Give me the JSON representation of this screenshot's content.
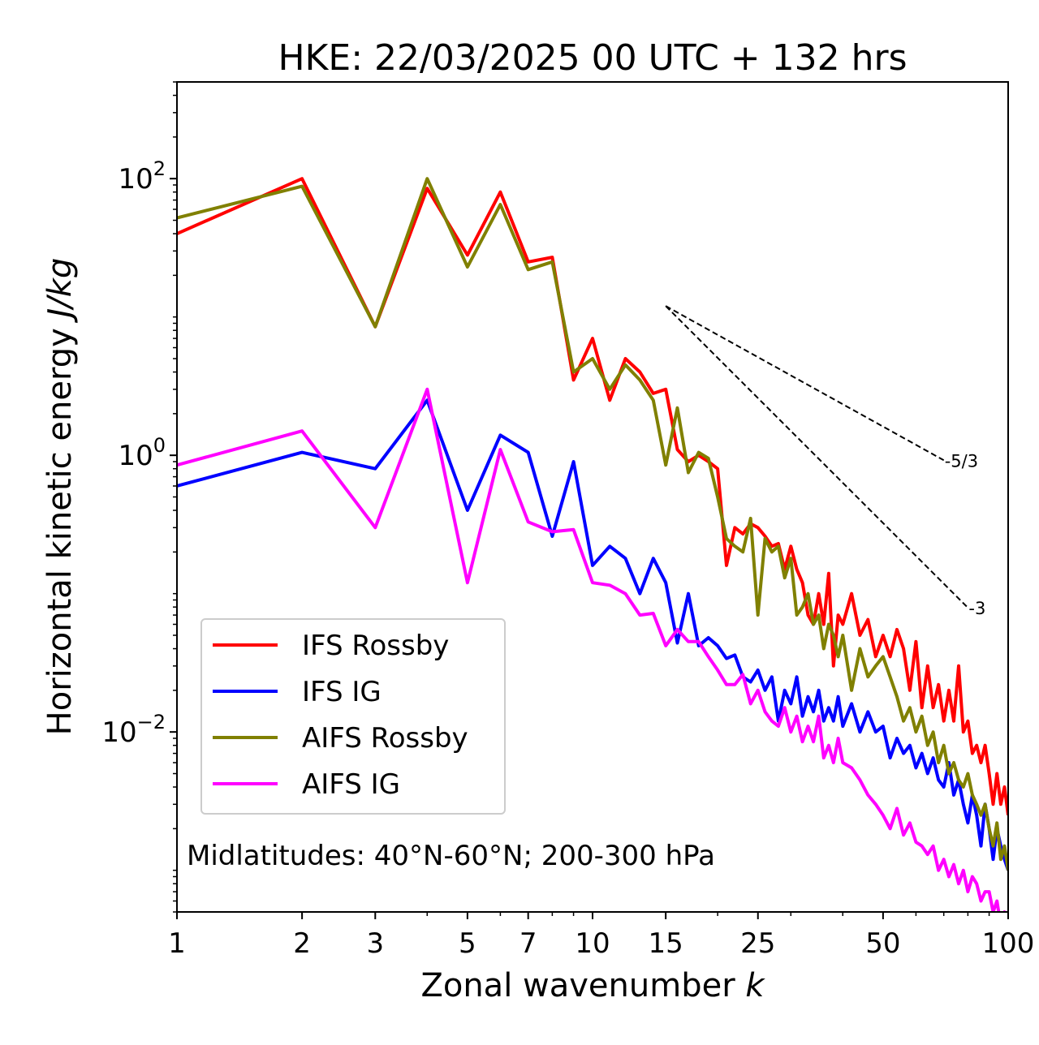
{
  "chart_data": {
    "type": "line",
    "title": "HKE: 22/03/2025 00 UTC + 132 hrs",
    "xlabel": "Zonal wavenumber k",
    "ylabel": "Horizontal kinetic energy J/kg",
    "xscale": "log",
    "yscale": "log",
    "xlim": [
      1,
      100
    ],
    "ylim": [
      0.0005,
      500
    ],
    "x_ticks": [
      1,
      2,
      3,
      5,
      7,
      10,
      15,
      25,
      50,
      100
    ],
    "x_tick_labels": [
      "1",
      "2",
      "3",
      "5",
      "7",
      "10",
      "15",
      "25",
      "50",
      "100"
    ],
    "y_ticks": [
      0.01,
      1,
      100
    ],
    "y_tick_labels": [
      {
        "base": "10",
        "exp": "−2"
      },
      {
        "base": "10",
        "exp": "0"
      },
      {
        "base": "10",
        "exp": "2"
      }
    ],
    "grid": false,
    "legend_position": "lower-left",
    "annotation": "Midlatitudes: 40°N-60°N; 200-300 hPa",
    "reference_slopes": [
      {
        "label": "-5/3",
        "slope": -1.6667,
        "k_start": 15,
        "k_end": 70,
        "e_start": 12
      },
      {
        "label": "-3",
        "slope": -3,
        "k_start": 15,
        "k_end": 80,
        "e_start": 12
      }
    ],
    "series": [
      {
        "name": "IFS Rossby",
        "color": "#ff0000",
        "x": [
          1,
          2,
          3,
          4,
          5,
          6,
          7,
          8,
          9,
          10,
          11,
          12,
          13,
          14,
          15,
          16,
          17,
          18,
          19,
          20,
          21,
          22,
          23,
          24,
          25,
          26,
          27,
          28,
          29,
          30,
          31,
          32,
          33,
          34,
          35,
          36,
          37,
          38,
          39,
          40,
          42,
          44,
          46,
          48,
          50,
          52,
          54,
          56,
          58,
          60,
          62,
          64,
          66,
          68,
          70,
          72,
          74,
          76,
          78,
          80,
          82,
          84,
          86,
          88,
          90,
          92,
          94,
          96,
          98,
          100
        ],
        "values": [
          40,
          100,
          8.5,
          85,
          28,
          80,
          25,
          27,
          3.5,
          7,
          2.5,
          5,
          4,
          2.8,
          3,
          1.1,
          0.9,
          1,
          0.9,
          0.8,
          0.16,
          0.3,
          0.27,
          0.32,
          0.3,
          0.26,
          0.22,
          0.23,
          0.15,
          0.22,
          0.15,
          0.12,
          0.07,
          0.06,
          0.1,
          0.06,
          0.14,
          0.03,
          0.07,
          0.06,
          0.1,
          0.05,
          0.065,
          0.035,
          0.05,
          0.035,
          0.055,
          0.04,
          0.02,
          0.045,
          0.015,
          0.03,
          0.015,
          0.022,
          0.012,
          0.02,
          0.012,
          0.03,
          0.01,
          0.012,
          0.007,
          0.008,
          0.006,
          0.008,
          0.005,
          0.003,
          0.005,
          0.003,
          0.004,
          0.0025
        ]
      },
      {
        "name": "IFS IG",
        "color": "#0000ff",
        "x": [
          1,
          2,
          3,
          4,
          5,
          6,
          7,
          8,
          9,
          10,
          11,
          12,
          13,
          14,
          15,
          16,
          17,
          18,
          19,
          20,
          21,
          22,
          23,
          24,
          25,
          26,
          27,
          28,
          29,
          30,
          31,
          32,
          33,
          34,
          35,
          36,
          37,
          38,
          39,
          40,
          42,
          44,
          46,
          48,
          50,
          52,
          54,
          56,
          58,
          60,
          62,
          64,
          66,
          68,
          70,
          72,
          74,
          76,
          78,
          80,
          82,
          84,
          86,
          88,
          90,
          92,
          94,
          96,
          98,
          100
        ],
        "values": [
          0.6,
          1.05,
          0.8,
          2.5,
          0.4,
          1.4,
          1.05,
          0.26,
          0.9,
          0.16,
          0.22,
          0.18,
          0.1,
          0.18,
          0.12,
          0.044,
          0.1,
          0.042,
          0.048,
          0.042,
          0.034,
          0.036,
          0.025,
          0.023,
          0.028,
          0.02,
          0.025,
          0.012,
          0.02,
          0.016,
          0.025,
          0.013,
          0.018,
          0.014,
          0.02,
          0.012,
          0.015,
          0.012,
          0.018,
          0.011,
          0.016,
          0.01,
          0.014,
          0.01,
          0.011,
          0.0065,
          0.009,
          0.007,
          0.008,
          0.0055,
          0.007,
          0.005,
          0.0065,
          0.0045,
          0.004,
          0.006,
          0.0035,
          0.0045,
          0.003,
          0.0022,
          0.0035,
          0.0025,
          0.0015,
          0.003,
          0.002,
          0.0012,
          0.002,
          0.0015,
          0.0012,
          0.001
        ]
      },
      {
        "name": "AIFS Rossby",
        "color": "#808000",
        "x": [
          1,
          2,
          3,
          4,
          5,
          6,
          7,
          8,
          9,
          10,
          11,
          12,
          13,
          14,
          15,
          16,
          17,
          18,
          19,
          20,
          21,
          22,
          23,
          24,
          25,
          26,
          27,
          28,
          29,
          30,
          31,
          32,
          33,
          34,
          35,
          36,
          37,
          38,
          39,
          40,
          42,
          44,
          46,
          48,
          50,
          52,
          54,
          56,
          58,
          60,
          62,
          64,
          66,
          68,
          70,
          72,
          74,
          76,
          78,
          80,
          82,
          84,
          86,
          88,
          90,
          92,
          94,
          96,
          98,
          100
        ],
        "values": [
          52,
          88,
          8.5,
          100,
          23,
          65,
          22,
          25,
          4,
          5,
          3,
          4.5,
          3.5,
          2.5,
          0.85,
          2.2,
          0.75,
          1.05,
          0.95,
          0.5,
          0.25,
          0.22,
          0.2,
          0.35,
          0.07,
          0.25,
          0.2,
          0.22,
          0.13,
          0.18,
          0.07,
          0.08,
          0.1,
          0.06,
          0.07,
          0.04,
          0.06,
          0.05,
          0.035,
          0.05,
          0.02,
          0.04,
          0.025,
          0.03,
          0.035,
          0.025,
          0.018,
          0.012,
          0.015,
          0.01,
          0.013,
          0.008,
          0.01,
          0.006,
          0.008,
          0.005,
          0.006,
          0.0045,
          0.004,
          0.005,
          0.0035,
          0.003,
          0.0025,
          0.003,
          0.002,
          0.0015,
          0.0022,
          0.0012,
          0.0015,
          0.001
        ]
      },
      {
        "name": "AIFS IG",
        "color": "#ff00ff",
        "x": [
          1,
          2,
          3,
          4,
          5,
          6,
          7,
          8,
          9,
          10,
          11,
          12,
          13,
          14,
          15,
          16,
          17,
          18,
          19,
          20,
          21,
          22,
          23,
          24,
          25,
          26,
          27,
          28,
          29,
          30,
          31,
          32,
          33,
          34,
          35,
          36,
          37,
          38,
          39,
          40,
          42,
          44,
          46,
          48,
          50,
          52,
          54,
          56,
          58,
          60,
          62,
          64,
          66,
          68,
          70,
          72,
          74,
          76,
          78,
          80,
          82,
          84,
          86,
          88,
          90,
          92,
          94,
          96,
          98,
          100
        ],
        "values": [
          0.85,
          1.5,
          0.3,
          3,
          0.12,
          1.1,
          0.33,
          0.28,
          0.29,
          0.12,
          0.115,
          0.1,
          0.07,
          0.072,
          0.042,
          0.055,
          0.045,
          0.045,
          0.035,
          0.028,
          0.022,
          0.022,
          0.026,
          0.016,
          0.02,
          0.014,
          0.012,
          0.011,
          0.015,
          0.01,
          0.013,
          0.0085,
          0.011,
          0.0085,
          0.013,
          0.0065,
          0.008,
          0.006,
          0.009,
          0.006,
          0.0055,
          0.0045,
          0.0035,
          0.003,
          0.0025,
          0.002,
          0.0028,
          0.0018,
          0.0022,
          0.0016,
          0.0015,
          0.0013,
          0.0015,
          0.001,
          0.0012,
          0.0009,
          0.0011,
          0.0008,
          0.001,
          0.0007,
          0.0009,
          0.0008,
          0.0006,
          0.0007,
          0.0007,
          0.0005,
          0.0006,
          0.0004,
          0.0005,
          0.0004
        ]
      }
    ]
  }
}
